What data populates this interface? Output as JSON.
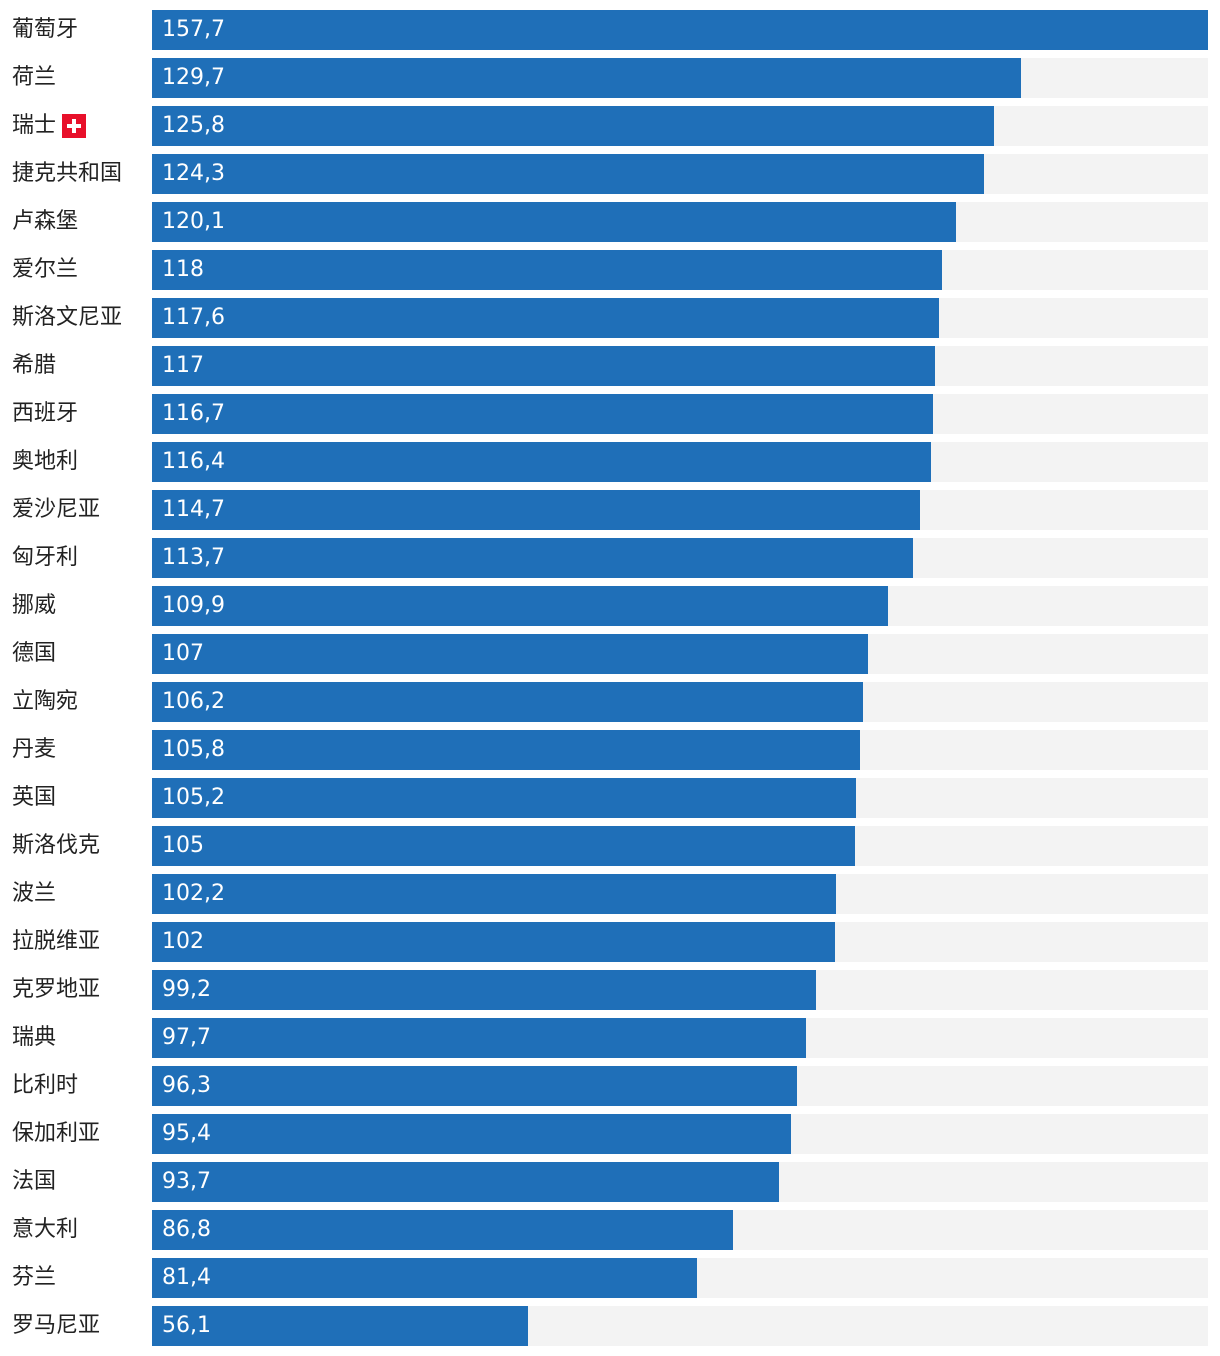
{
  "chart_data": {
    "type": "bar",
    "orientation": "horizontal",
    "title": "",
    "xlabel": "",
    "ylabel": "",
    "xlim": [
      0,
      157.7
    ],
    "grid": false,
    "legend": "none",
    "colors": {
      "bar": "#1f6fb8",
      "track": "#f3f3f3",
      "label": "#222222",
      "value": "#ffffff"
    },
    "categories": [
      "葡萄牙",
      "荷兰",
      "瑞士",
      "捷克共和国",
      "卢森堡",
      "爱尔兰",
      "斯洛文尼亚",
      "希腊",
      "西班牙",
      "奥地利",
      "爱沙尼亚",
      "匈牙利",
      "挪威",
      "德国",
      "立陶宛",
      "丹麦",
      "英国",
      "斯洛伐克",
      "波兰",
      "拉脱维亚",
      "克罗地亚",
      "瑞典",
      "比利时",
      "保加利亚",
      "法国",
      "意大利",
      "芬兰",
      "罗马尼亚"
    ],
    "values": [
      157.7,
      129.7,
      125.8,
      124.3,
      120.1,
      118,
      117.6,
      117,
      116.7,
      116.4,
      114.7,
      113.7,
      109.9,
      107,
      106.2,
      105.8,
      105.2,
      105,
      102.2,
      102,
      99.2,
      97.7,
      96.3,
      95.4,
      93.7,
      86.8,
      81.4,
      56.1
    ],
    "value_labels": [
      "157,7",
      "129,7",
      "125,8",
      "124,3",
      "120,1",
      "118",
      "117,6",
      "117",
      "116,7",
      "116,4",
      "114,7",
      "113,7",
      "109,9",
      "107",
      "106,2",
      "105,8",
      "105,2",
      "105",
      "102,2",
      "102",
      "99,2",
      "97,7",
      "96,3",
      "95,4",
      "93,7",
      "86,8",
      "81,4",
      "56,1"
    ],
    "highlight": {
      "category": "瑞士",
      "icon": "swiss-flag-icon"
    }
  }
}
